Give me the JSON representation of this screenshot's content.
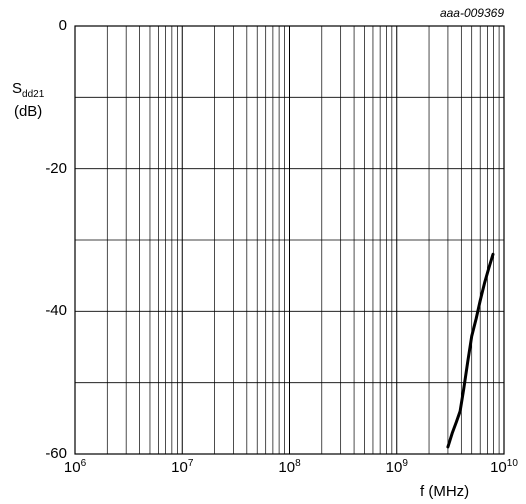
{
  "chart_data": {
    "type": "line",
    "id_label": "aaa-009369",
    "y_axis": {
      "label_main": "S",
      "label_sub": "dd21",
      "label_unit": "(dB)",
      "range": [
        -60,
        0
      ],
      "ticks": [
        "0",
        "-20",
        "-40",
        "-60"
      ],
      "tick_values": [
        0,
        -20,
        -40,
        -60
      ],
      "grid_step": 10
    },
    "x_axis": {
      "label": "f (MHz)",
      "scale": "log",
      "range": [
        1000000,
        10000000000
      ],
      "ticks": [
        {
          "base": "10",
          "exp": "6"
        },
        {
          "base": "10",
          "exp": "7"
        },
        {
          "base": "10",
          "exp": "8"
        },
        {
          "base": "10",
          "exp": "9"
        },
        {
          "base": "10",
          "exp": "10"
        }
      ],
      "tick_values": [
        1000000,
        10000000,
        100000000,
        1000000000,
        10000000000
      ]
    },
    "grid": true,
    "series": [
      {
        "color": "#000000",
        "x": [
          3000000000,
          3300000000,
          3600000000,
          3900000000,
          4200000000,
          4600000000,
          5000000000,
          5500000000,
          6000000000,
          6600000000,
          7200000000,
          7900000000
        ],
        "y": [
          -59,
          -57,
          -55.5,
          -54,
          -51,
          -47,
          -43.5,
          -41,
          -38.5,
          -36,
          -34,
          -32
        ]
      }
    ]
  }
}
